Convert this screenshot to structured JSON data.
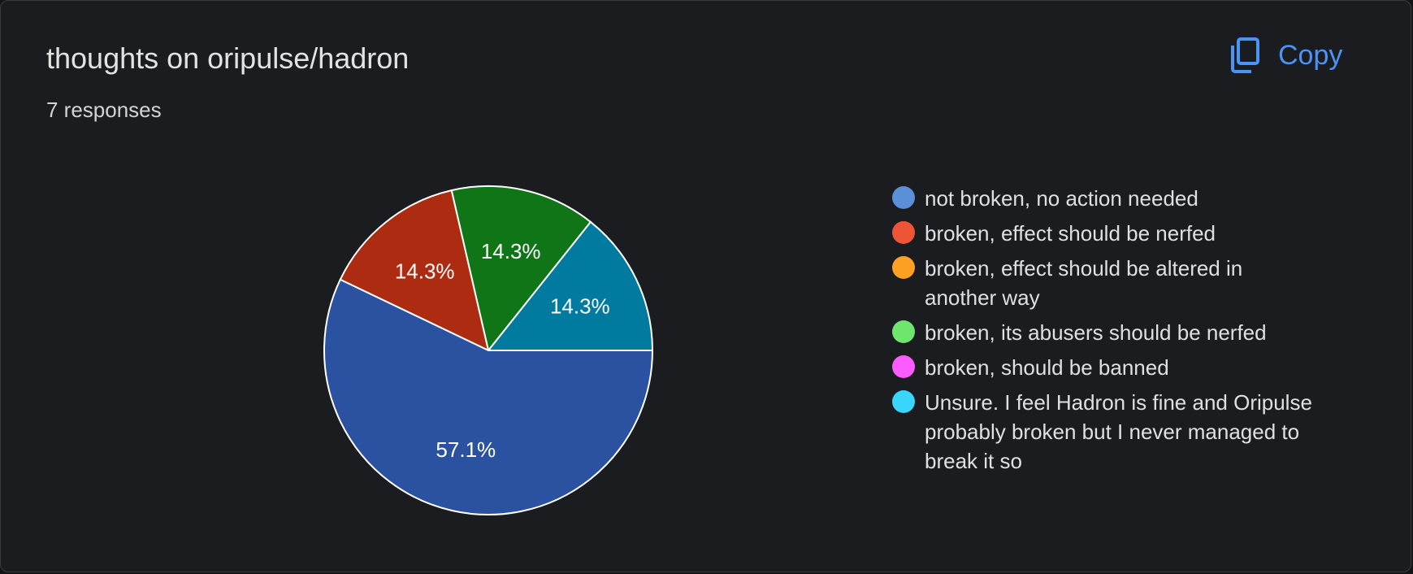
{
  "header": {
    "title": "thoughts on oripulse/hadron",
    "responses": "7 responses",
    "copy_label": "Copy"
  },
  "colors": {
    "accent": "#4b93f5",
    "background": "#1b1c1f"
  },
  "icons": {
    "copy": "copy-icon"
  },
  "chart_data": {
    "type": "pie",
    "title": "thoughts on oripulse/hadron",
    "total_responses": 7,
    "slices": [
      {
        "label": "not broken, no action needed",
        "value": 57.1,
        "count": 4,
        "color": "#2a52a0",
        "legend_color": "#5b8fd8",
        "pct_label": "57.1%"
      },
      {
        "label": "broken, effect should be nerfed",
        "value": 14.3,
        "count": 1,
        "color": "#ad2c11",
        "legend_color": "#ee5537",
        "pct_label": "14.3%"
      },
      {
        "label": "broken, effect should be altered in another way",
        "value": 0,
        "count": 0,
        "color": "#f2a317",
        "legend_color": "#fca124",
        "pct_label": ""
      },
      {
        "label": "broken, its abusers should be nerfed",
        "value": 14.3,
        "count": 1,
        "color": "#0f7516",
        "legend_color": "#6ee66e",
        "pct_label": "14.3%"
      },
      {
        "label": "broken, should be banned",
        "value": 0,
        "count": 0,
        "color": "#f15cf3",
        "legend_color": "#fb5bff",
        "pct_label": ""
      },
      {
        "label": "Unsure. I feel Hadron is fine and Oripulse probably broken but I never managed to break it so",
        "value": 14.3,
        "count": 1,
        "color": "#017a9f",
        "legend_color": "#3ad5fb",
        "pct_label": "14.3%"
      }
    ],
    "legend_position": "right"
  }
}
